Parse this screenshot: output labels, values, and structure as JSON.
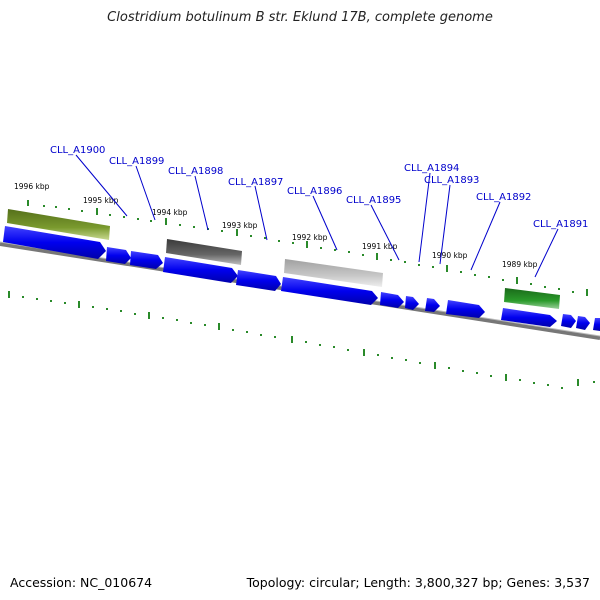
{
  "title": "Clostridium botulinum B str. Eklund 17B, complete genome",
  "accession_text": "Accession: NC_010674",
  "summary_text": "Topology: circular; Length: 3,800,327 bp; Genes: 3,537",
  "kbp_ticks": [
    "1996 kbp",
    "1995 kbp",
    "1994 kbp",
    "1993 kbp",
    "1992 kbp",
    "1991 kbp",
    "1990 kbp",
    "1989 kbp"
  ],
  "gene_labels": [
    "CLL_A1900",
    "CLL_A1899",
    "CLL_A1898",
    "CLL_A1897",
    "CLL_A1896",
    "CLL_A1895",
    "CLL_A1894",
    "CLL_A1893",
    "CLL_A1892",
    "CLL_A1891"
  ],
  "colors": {
    "gene_blue": "#0000ee",
    "backbone": "#777777",
    "tick_green": "#2a8a2a",
    "label_blue": "#0000cc",
    "olive": "#6b8e23",
    "dark_gray": "#555555",
    "light_gray": "#bbbbbb",
    "green": "#228b22"
  }
}
